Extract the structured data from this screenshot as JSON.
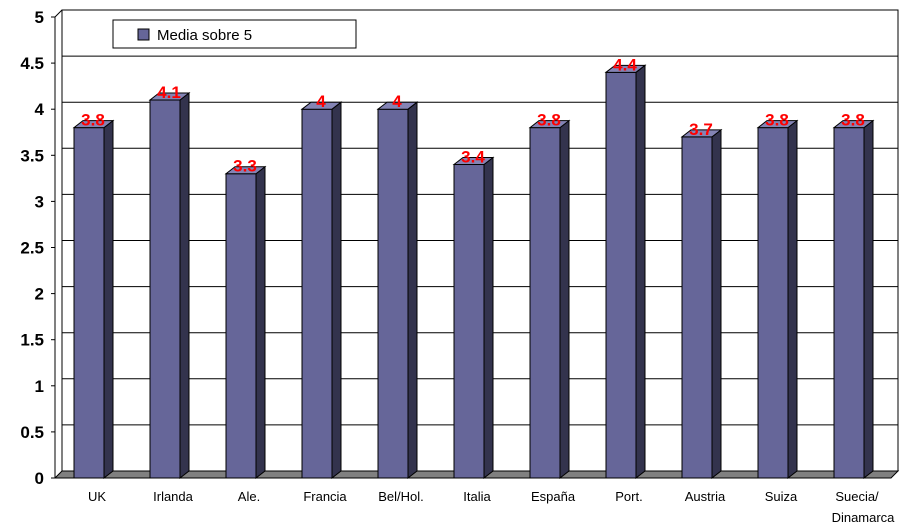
{
  "chart_data": {
    "type": "bar",
    "style": "3d-column",
    "categories": [
      "UK",
      "Irlanda",
      "Ale.",
      "Francia",
      "Bel/Hol.",
      "Italia",
      "España",
      "Port.",
      "Austria",
      "Suiza",
      [
        "Suecia/",
        "Dinamarca"
      ]
    ],
    "series": [
      {
        "name": "Media sobre 5",
        "values": [
          3.8,
          4.1,
          3.3,
          4.0,
          4.0,
          3.4,
          3.8,
          4.4,
          3.7,
          3.8,
          3.8
        ]
      }
    ],
    "data_labels": [
      "3.8",
      "4.1",
      "3.3",
      "4",
      "4",
      "3.4",
      "3.8",
      "4.4",
      "3.7",
      "3.8",
      "3.8"
    ],
    "y_ticks": [
      "0",
      "0.5",
      "1",
      "1.5",
      "2",
      "2.5",
      "3",
      "3.5",
      "4",
      "4.5",
      "5"
    ],
    "ylim": [
      0,
      5
    ],
    "grid": true,
    "legend_position": "top-left",
    "colors": {
      "bar_front": "#666699",
      "bar_side": "#33334d",
      "bar_top": "#8484b5",
      "data_label": "#ff0000",
      "grid": "#000000"
    }
  }
}
